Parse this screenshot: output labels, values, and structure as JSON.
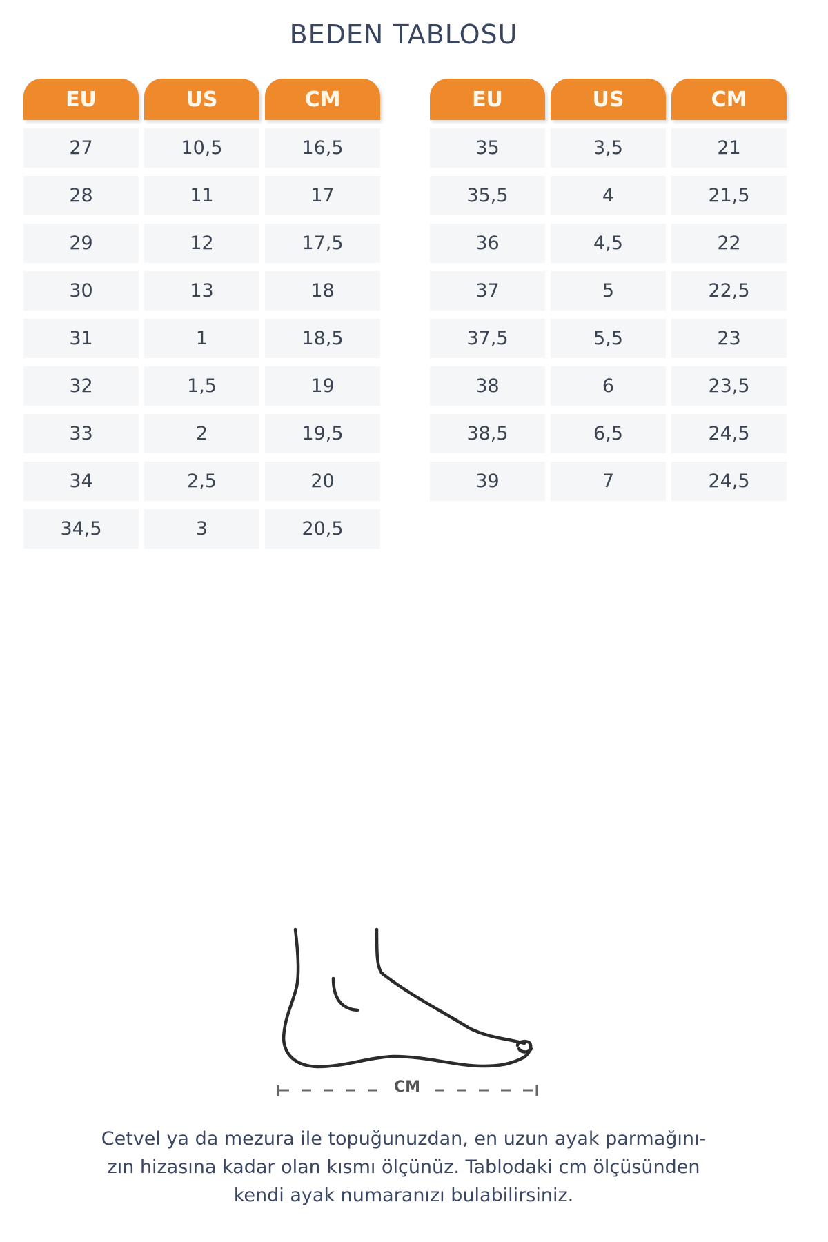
{
  "title": "BEDEN TABLOSU",
  "headers": [
    "EU",
    "US",
    "CM"
  ],
  "colors": {
    "header_bg": "#ef8a2c",
    "cell_bg": "#f5f6f7",
    "text": "#3a4660"
  },
  "left_table": [
    [
      "27",
      "10,5",
      "16,5"
    ],
    [
      "28",
      "11",
      "17"
    ],
    [
      "29",
      "12",
      "17,5"
    ],
    [
      "30",
      "13",
      "18"
    ],
    [
      "31",
      "1",
      "18,5"
    ],
    [
      "32",
      "1,5",
      "19"
    ],
    [
      "33",
      "2",
      "19,5"
    ],
    [
      "34",
      "2,5",
      "20"
    ],
    [
      "34,5",
      "3",
      "20,5"
    ]
  ],
  "right_table": [
    [
      "35",
      "3,5",
      "21"
    ],
    [
      "35,5",
      "4",
      "21,5"
    ],
    [
      "36",
      "4,5",
      "22"
    ],
    [
      "37",
      "5",
      "22,5"
    ],
    [
      "37,5",
      "5,5",
      "23"
    ],
    [
      "38",
      "6",
      "23,5"
    ],
    [
      "38,5",
      "6,5",
      "24,5"
    ],
    [
      "39",
      "7",
      "24,5"
    ]
  ],
  "foot_diagram": {
    "icon": "foot-outline-icon",
    "measure_label": "CM"
  },
  "note": [
    "Cetvel ya da mezura ile topuğunuzdan, en uzun ayak parmağını-",
    "zın hizasına kadar olan kısmı ölçünüz. Tablodaki cm ölçüsünden",
    "kendi ayak numaranızı bulabilirsiniz."
  ]
}
